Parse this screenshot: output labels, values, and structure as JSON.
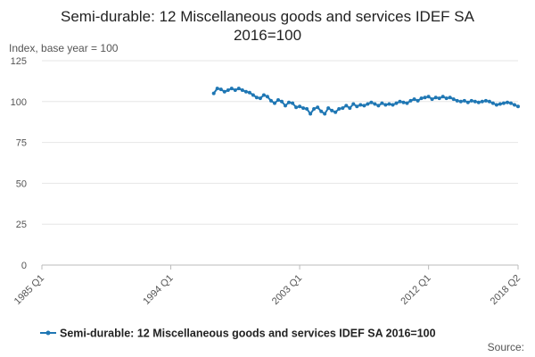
{
  "chart_data": {
    "type": "line",
    "title": "Semi-durable: 12 Miscellaneous goods and services IDEF SA 2016=100",
    "title_lines": [
      "Semi-durable: 12 Miscellaneous goods and services IDEF SA",
      "2016=100"
    ],
    "ylabel": "Index, base year = 100",
    "xlabel": "",
    "ylim": [
      0,
      125
    ],
    "yticks": [
      0,
      25,
      50,
      75,
      100,
      125
    ],
    "x_range": [
      "1985 Q1",
      "2018 Q2"
    ],
    "xticks": [
      "1985 Q1",
      "1994 Q1",
      "2003 Q1",
      "2012 Q1",
      "2018 Q2"
    ],
    "grid": true,
    "legend_position": "bottom",
    "source_label": "Source:",
    "series": [
      {
        "name": "Semi-durable: 12 Miscellaneous goods and services IDEF SA 2016=100",
        "color": "#1f77b4",
        "x": [
          "1997 Q1",
          "1997 Q2",
          "1997 Q3",
          "1997 Q4",
          "1998 Q1",
          "1998 Q2",
          "1998 Q3",
          "1998 Q4",
          "1999 Q1",
          "1999 Q2",
          "1999 Q3",
          "1999 Q4",
          "2000 Q1",
          "2000 Q2",
          "2000 Q3",
          "2000 Q4",
          "2001 Q1",
          "2001 Q2",
          "2001 Q3",
          "2001 Q4",
          "2002 Q1",
          "2002 Q2",
          "2002 Q3",
          "2002 Q4",
          "2003 Q1",
          "2003 Q2",
          "2003 Q3",
          "2003 Q4",
          "2004 Q1",
          "2004 Q2",
          "2004 Q3",
          "2004 Q4",
          "2005 Q1",
          "2005 Q2",
          "2005 Q3",
          "2005 Q4",
          "2006 Q1",
          "2006 Q2",
          "2006 Q3",
          "2006 Q4",
          "2007 Q1",
          "2007 Q2",
          "2007 Q3",
          "2007 Q4",
          "2008 Q1",
          "2008 Q2",
          "2008 Q3",
          "2008 Q4",
          "2009 Q1",
          "2009 Q2",
          "2009 Q3",
          "2009 Q4",
          "2010 Q1",
          "2010 Q2",
          "2010 Q3",
          "2010 Q4",
          "2011 Q1",
          "2011 Q2",
          "2011 Q3",
          "2011 Q4",
          "2012 Q1",
          "2012 Q2",
          "2012 Q3",
          "2012 Q4",
          "2013 Q1",
          "2013 Q2",
          "2013 Q3",
          "2013 Q4",
          "2014 Q1",
          "2014 Q2",
          "2014 Q3",
          "2014 Q4",
          "2015 Q1",
          "2015 Q2",
          "2015 Q3",
          "2015 Q4",
          "2016 Q1",
          "2016 Q2",
          "2016 Q3",
          "2016 Q4",
          "2017 Q1",
          "2017 Q2",
          "2017 Q3",
          "2017 Q4",
          "2018 Q1",
          "2018 Q2"
        ],
        "values": [
          105.0,
          108.0,
          107.5,
          106.0,
          107.0,
          108.0,
          107.0,
          108.0,
          107.0,
          106.0,
          105.5,
          104.0,
          102.5,
          102.0,
          104.0,
          103.0,
          100.5,
          99.0,
          101.0,
          100.0,
          97.5,
          99.5,
          99.0,
          96.5,
          97.0,
          96.0,
          95.5,
          92.5,
          95.5,
          96.5,
          94.0,
          92.5,
          96.0,
          94.5,
          93.5,
          95.5,
          96.0,
          97.5,
          96.0,
          98.5,
          97.0,
          98.0,
          97.5,
          98.5,
          99.5,
          98.5,
          97.5,
          99.0,
          98.0,
          98.5,
          98.0,
          99.0,
          100.0,
          99.5,
          99.0,
          100.5,
          101.5,
          100.5,
          102.0,
          102.5,
          103.0,
          101.5,
          102.5,
          102.0,
          103.0,
          102.0,
          102.5,
          101.5,
          100.5,
          100.0,
          100.5,
          99.5,
          100.5,
          100.0,
          99.5,
          100.0,
          100.5,
          100.0,
          99.0,
          98.0,
          98.5,
          99.0,
          99.5,
          99.0,
          98.0,
          97.0
        ]
      }
    ]
  }
}
